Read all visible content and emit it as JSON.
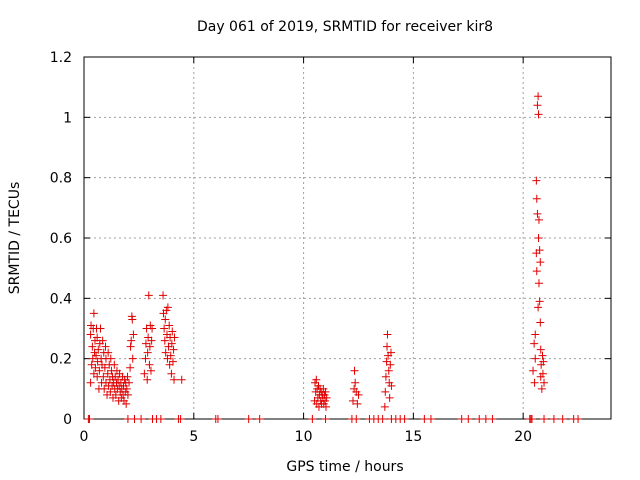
{
  "chart_data": {
    "type": "scatter",
    "title": "Day 061 of 2019, SRMTID for receiver kir8",
    "xlabel": "GPS time / hours",
    "ylabel": "SRMTID / TECUs",
    "xlim": [
      0,
      24
    ],
    "ylim": [
      0,
      1.2
    ],
    "x_ticks": [
      0,
      5,
      10,
      15,
      20
    ],
    "x_tick_labels": [
      "0",
      "5",
      "10",
      "15",
      "20"
    ],
    "y_ticks": [
      0,
      0.2,
      0.4,
      0.6,
      0.8,
      1.0,
      1.2
    ],
    "y_tick_labels": [
      "0",
      "0.2",
      "0.4",
      "0.6",
      "0.8",
      "1",
      "1.2"
    ],
    "grid": true,
    "marker": "+",
    "color": "#e00000",
    "series": [
      {
        "name": "SRMTID",
        "points": [
          [
            0.2,
            0.0
          ],
          [
            0.25,
            0.0
          ],
          [
            0.3,
            0.12
          ],
          [
            0.3,
            0.28
          ],
          [
            0.32,
            0.31
          ],
          [
            0.35,
            0.18
          ],
          [
            0.38,
            0.24
          ],
          [
            0.4,
            0.2
          ],
          [
            0.42,
            0.3
          ],
          [
            0.45,
            0.15
          ],
          [
            0.45,
            0.35
          ],
          [
            0.48,
            0.22
          ],
          [
            0.5,
            0.26
          ],
          [
            0.52,
            0.17
          ],
          [
            0.55,
            0.21
          ],
          [
            0.57,
            0.3
          ],
          [
            0.6,
            0.14
          ],
          [
            0.6,
            0.27
          ],
          [
            0.62,
            0.19
          ],
          [
            0.65,
            0.23
          ],
          [
            0.68,
            0.1
          ],
          [
            0.7,
            0.16
          ],
          [
            0.72,
            0.25
          ],
          [
            0.75,
            0.3
          ],
          [
            0.78,
            0.2
          ],
          [
            0.8,
            0.12
          ],
          [
            0.82,
            0.18
          ],
          [
            0.85,
            0.26
          ],
          [
            0.88,
            0.14
          ],
          [
            0.9,
            0.22
          ],
          [
            0.92,
            0.1
          ],
          [
            0.95,
            0.17
          ],
          [
            0.98,
            0.24
          ],
          [
            1.0,
            0.12
          ],
          [
            1.0,
            0.2
          ],
          [
            1.05,
            0.08
          ],
          [
            1.08,
            0.15
          ],
          [
            1.1,
            0.22
          ],
          [
            1.12,
            0.11
          ],
          [
            1.15,
            0.18
          ],
          [
            1.18,
            0.13
          ],
          [
            1.2,
            0.09
          ],
          [
            1.22,
            0.2
          ],
          [
            1.25,
            0.16
          ],
          [
            1.28,
            0.11
          ],
          [
            1.3,
            0.14
          ],
          [
            1.32,
            0.07
          ],
          [
            1.35,
            0.12
          ],
          [
            1.38,
            0.18
          ],
          [
            1.4,
            0.1
          ],
          [
            1.42,
            0.14
          ],
          [
            1.45,
            0.08
          ],
          [
            1.48,
            0.12
          ],
          [
            1.5,
            0.16
          ],
          [
            1.52,
            0.1
          ],
          [
            1.55,
            0.13
          ],
          [
            1.58,
            0.06
          ],
          [
            1.6,
            0.11
          ],
          [
            1.62,
            0.15
          ],
          [
            1.65,
            0.09
          ],
          [
            1.68,
            0.12
          ],
          [
            1.7,
            0.07
          ],
          [
            1.72,
            0.1
          ],
          [
            1.75,
            0.14
          ],
          [
            1.78,
            0.08
          ],
          [
            1.8,
            0.11
          ],
          [
            1.82,
            0.06
          ],
          [
            1.85,
            0.13
          ],
          [
            1.88,
            0.09
          ],
          [
            1.9,
            0.12
          ],
          [
            1.92,
            0.05
          ],
          [
            1.95,
            0.1
          ],
          [
            1.98,
            0.14
          ],
          [
            2.0,
            0.08
          ],
          [
            2.05,
            0.12
          ],
          [
            2.1,
            0.17
          ],
          [
            2.12,
            0.24
          ],
          [
            2.15,
            0.26
          ],
          [
            2.18,
            0.34
          ],
          [
            2.2,
            0.33
          ],
          [
            2.22,
            0.2
          ],
          [
            2.25,
            0.28
          ],
          [
            2.0,
            0.0
          ],
          [
            2.3,
            0.0
          ],
          [
            2.6,
            0.0
          ],
          [
            2.75,
            0.15
          ],
          [
            2.8,
            0.2
          ],
          [
            2.82,
            0.25
          ],
          [
            2.85,
            0.3
          ],
          [
            2.88,
            0.13
          ],
          [
            2.9,
            0.22
          ],
          [
            2.92,
            0.27
          ],
          [
            2.95,
            0.41
          ],
          [
            2.98,
            0.18
          ],
          [
            3.0,
            0.24
          ],
          [
            3.02,
            0.31
          ],
          [
            3.05,
            0.16
          ],
          [
            3.08,
            0.26
          ],
          [
            3.1,
            0.3
          ],
          [
            3.12,
            0.0
          ],
          [
            3.3,
            0.0
          ],
          [
            3.5,
            0.0
          ],
          [
            3.6,
            0.41
          ],
          [
            3.62,
            0.35
          ],
          [
            3.65,
            0.3
          ],
          [
            3.68,
            0.26
          ],
          [
            3.7,
            0.33
          ],
          [
            3.72,
            0.22
          ],
          [
            3.75,
            0.36
          ],
          [
            3.78,
            0.28
          ],
          [
            3.8,
            0.2
          ],
          [
            3.82,
            0.37
          ],
          [
            3.85,
            0.24
          ],
          [
            3.88,
            0.31
          ],
          [
            3.9,
            0.18
          ],
          [
            3.92,
            0.27
          ],
          [
            3.95,
            0.21
          ],
          [
            3.98,
            0.15
          ],
          [
            4.0,
            0.25
          ],
          [
            4.02,
            0.29
          ],
          [
            4.05,
            0.19
          ],
          [
            4.08,
            0.23
          ],
          [
            4.1,
            0.13
          ],
          [
            4.12,
            0.27
          ],
          [
            4.3,
            0.0
          ],
          [
            4.4,
            0.0
          ],
          [
            4.45,
            0.13
          ],
          [
            6.0,
            0.0
          ],
          [
            6.1,
            0.0
          ],
          [
            7.5,
            0.0
          ],
          [
            8.0,
            0.0
          ],
          [
            10.4,
            0.0
          ],
          [
            10.5,
            0.06
          ],
          [
            10.52,
            0.12
          ],
          [
            10.55,
            0.09
          ],
          [
            10.58,
            0.13
          ],
          [
            10.6,
            0.05
          ],
          [
            10.62,
            0.1
          ],
          [
            10.65,
            0.07
          ],
          [
            10.68,
            0.11
          ],
          [
            10.7,
            0.04
          ],
          [
            10.72,
            0.08
          ],
          [
            10.75,
            0.1
          ],
          [
            10.78,
            0.06
          ],
          [
            10.8,
            0.09
          ],
          [
            10.82,
            0.05
          ],
          [
            10.85,
            0.08
          ],
          [
            10.88,
            0.07
          ],
          [
            10.9,
            0.1
          ],
          [
            10.92,
            0.05
          ],
          [
            10.95,
            0.08
          ],
          [
            10.98,
            0.06
          ],
          [
            11.0,
            0.09
          ],
          [
            11.02,
            0.04
          ],
          [
            11.05,
            0.07
          ],
          [
            11.0,
            0.0
          ],
          [
            12.2,
            0.0
          ],
          [
            12.25,
            0.06
          ],
          [
            12.3,
            0.1
          ],
          [
            12.32,
            0.16
          ],
          [
            12.35,
            0.12
          ],
          [
            12.4,
            0.09
          ],
          [
            12.45,
            0.05
          ],
          [
            12.5,
            0.08
          ],
          [
            12.4,
            0.0
          ],
          [
            13.0,
            0.0
          ],
          [
            13.2,
            0.0
          ],
          [
            13.4,
            0.0
          ],
          [
            13.6,
            0.0
          ],
          [
            13.7,
            0.04
          ],
          [
            13.72,
            0.09
          ],
          [
            13.75,
            0.14
          ],
          [
            13.78,
            0.19
          ],
          [
            13.8,
            0.24
          ],
          [
            13.82,
            0.28
          ],
          [
            13.85,
            0.21
          ],
          [
            13.88,
            0.16
          ],
          [
            13.9,
            0.12
          ],
          [
            13.92,
            0.07
          ],
          [
            13.95,
            0.18
          ],
          [
            13.98,
            0.22
          ],
          [
            14.0,
            0.11
          ],
          [
            14.0,
            0.0
          ],
          [
            14.2,
            0.0
          ],
          [
            14.4,
            0.0
          ],
          [
            14.6,
            0.0
          ],
          [
            15.5,
            0.0
          ],
          [
            15.8,
            0.0
          ],
          [
            17.2,
            0.0
          ],
          [
            17.5,
            0.0
          ],
          [
            18.0,
            0.0
          ],
          [
            18.3,
            0.0
          ],
          [
            18.6,
            0.0
          ],
          [
            20.3,
            0.0
          ],
          [
            20.35,
            0.0
          ],
          [
            20.4,
            0.0
          ],
          [
            20.45,
            0.16
          ],
          [
            20.5,
            0.25
          ],
          [
            20.52,
            0.12
          ],
          [
            20.55,
            0.2
          ],
          [
            20.55,
            0.28
          ],
          [
            20.6,
            0.55
          ],
          [
            20.6,
            0.79
          ],
          [
            20.62,
            0.73
          ],
          [
            20.62,
            0.49
          ],
          [
            20.65,
            1.04
          ],
          [
            20.65,
            0.68
          ],
          [
            20.68,
            1.07
          ],
          [
            20.68,
            0.37
          ],
          [
            20.7,
            1.01
          ],
          [
            20.7,
            0.6
          ],
          [
            20.72,
            0.66
          ],
          [
            20.72,
            0.45
          ],
          [
            20.75,
            0.56
          ],
          [
            20.75,
            0.39
          ],
          [
            20.78,
            0.52
          ],
          [
            20.78,
            0.32
          ],
          [
            20.8,
            0.23
          ],
          [
            20.8,
            0.14
          ],
          [
            20.82,
            0.18
          ],
          [
            20.85,
            0.1
          ],
          [
            20.88,
            0.21
          ],
          [
            20.9,
            0.15
          ],
          [
            20.92,
            0.19
          ],
          [
            20.95,
            0.12
          ],
          [
            20.95,
            0.0
          ],
          [
            21.4,
            0.0
          ],
          [
            21.8,
            0.0
          ],
          [
            22.3,
            0.0
          ],
          [
            22.5,
            0.0
          ]
        ]
      }
    ]
  }
}
